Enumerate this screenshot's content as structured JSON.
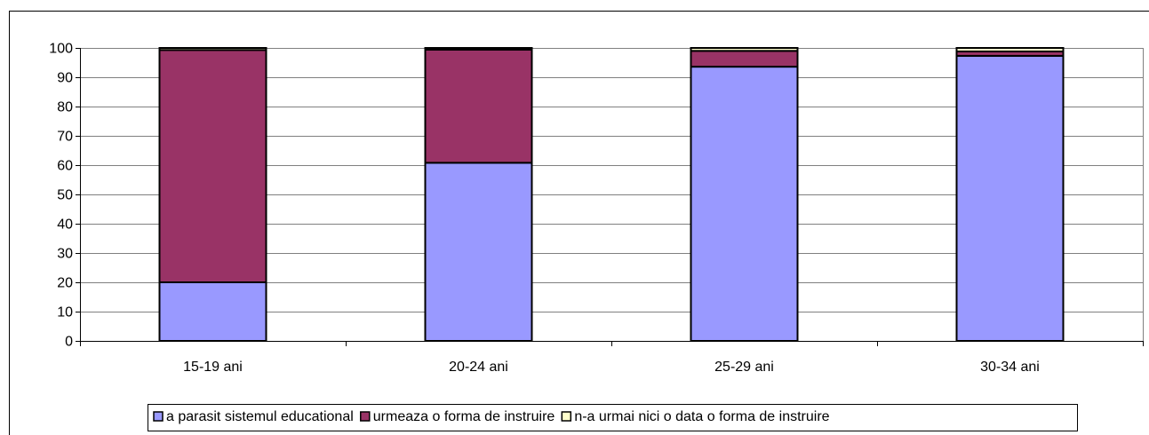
{
  "chart_data": {
    "type": "stacked-bar",
    "categories": [
      "15-19 ani",
      "20-24 ani",
      "25-29 ani",
      "30-34 ani"
    ],
    "series": [
      {
        "name": "a parasit sistemul educational",
        "color": "#9999ff",
        "values": [
          20,
          60.8,
          93.6,
          97.3
        ]
      },
      {
        "name": "urmeaza o forma de instruire",
        "color": "#993366",
        "values": [
          79.3,
          38.6,
          5.4,
          1.5
        ]
      },
      {
        "name": "n-a urmai nici o data o forma de instruire",
        "color": "#ffffcc",
        "values": [
          0.7,
          0.6,
          1.0,
          1.2
        ]
      }
    ],
    "ylim": [
      0,
      100
    ],
    "yticks": [
      0,
      10,
      20,
      30,
      40,
      50,
      60,
      70,
      80,
      90,
      100
    ],
    "grid": true,
    "legend": "bottom"
  }
}
